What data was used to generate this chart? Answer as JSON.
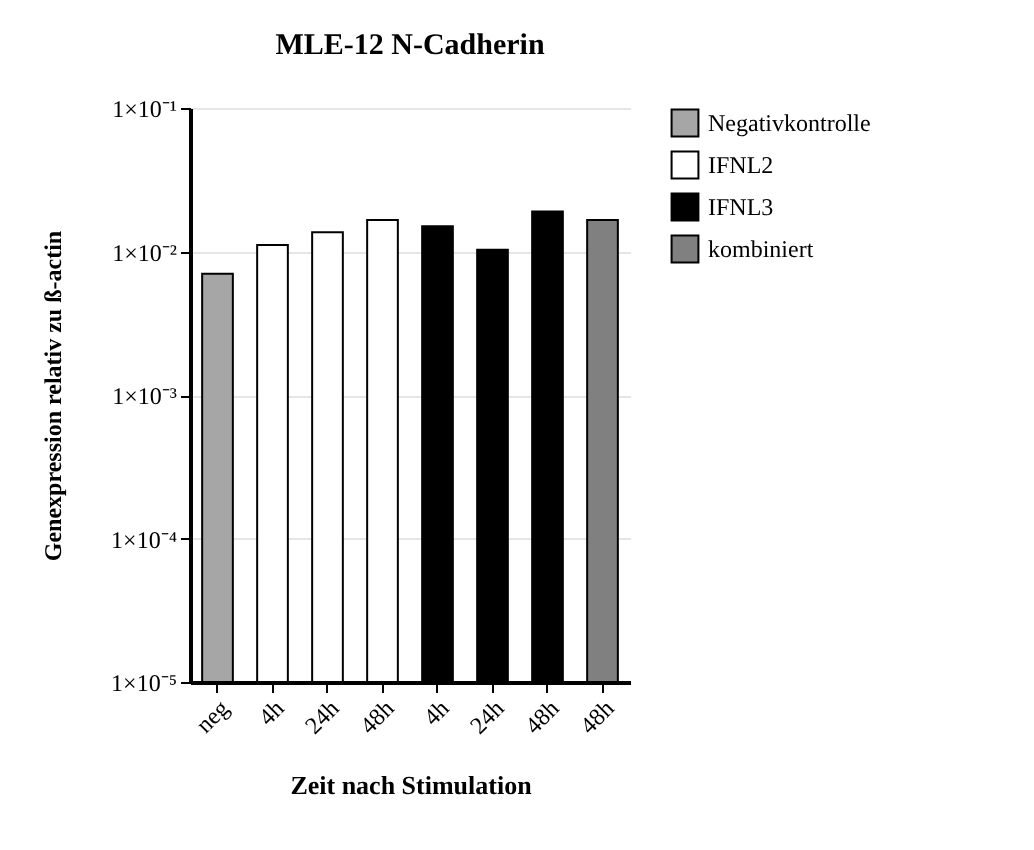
{
  "chart_data": {
    "type": "bar",
    "title": "MLE-12 N-Cadherin",
    "xlabel": "Zeit nach Stimulation",
    "ylabel": "Genexpression relativ zu ß-actin",
    "categories": [
      "neg",
      "4h",
      "24h",
      "48h",
      "4h",
      "24h",
      "48h",
      "48h"
    ],
    "series": [
      {
        "name": "Negativkontrolle",
        "color": "#a6a6a6",
        "values": [
          0.007,
          null,
          null,
          null,
          null,
          null,
          null,
          null
        ]
      },
      {
        "name": "IFNL2",
        "color": "#ffffff",
        "values": [
          null,
          0.0111,
          0.0136,
          0.0166,
          null,
          null,
          null,
          null
        ]
      },
      {
        "name": "IFNL3",
        "color": "#000000",
        "values": [
          null,
          null,
          null,
          null,
          0.015,
          0.0103,
          0.019,
          null
        ]
      },
      {
        "name": "kombiniert",
        "color": "#808080",
        "values": [
          null,
          null,
          null,
          null,
          null,
          null,
          null,
          0.0166
        ]
      }
    ],
    "log": true,
    "ylim": [
      1e-05,
      0.1
    ],
    "yticks": [
      {
        "value": 1e-05,
        "label": "1×10⁻⁵"
      },
      {
        "value": 0.0001,
        "label": "1×10⁻⁴"
      },
      {
        "value": 0.001,
        "label": "1×10⁻³"
      },
      {
        "value": 0.01,
        "label": "1×10⁻²"
      },
      {
        "value": 0.1,
        "label": "1×10⁻¹"
      }
    ],
    "grid": "y",
    "legend": "top right"
  }
}
